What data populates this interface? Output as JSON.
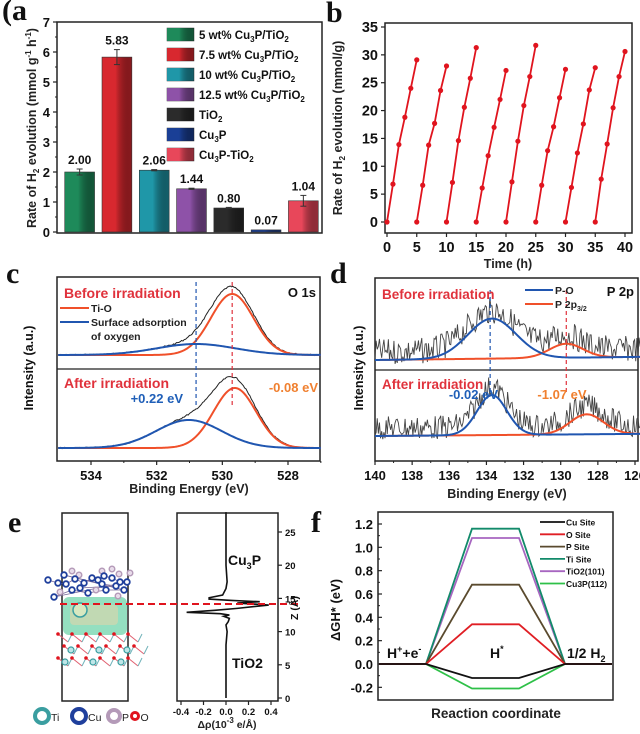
{
  "figure": {
    "panel_labels": [
      "(a",
      "b",
      "c",
      "d",
      "e",
      "f"
    ]
  },
  "chart_data": [
    {
      "id": "a",
      "type": "bar",
      "title": "",
      "xlabel": "",
      "ylabel": "Rate of H2 evolution (mmol g-1 h-1)",
      "ylabel_parts": {
        "pre": "Rate of H",
        "sub": "2",
        "mid": " evolution (mmol g",
        "sup1": "-1",
        "mid2": " h",
        "sup2": "-1",
        "post": ")"
      },
      "ylim": [
        0,
        7
      ],
      "yticks": [
        0,
        1,
        2,
        3,
        4,
        5,
        6,
        7
      ],
      "categories": [
        "5 wt% Cu3P/TiO2",
        "7.5 wt% Cu3P/TiO2",
        "10 wt% Cu3P/TiO2",
        "12.5 wt% Cu3P/TiO2",
        "TiO2",
        "Cu3P",
        "Cu3P-TiO2"
      ],
      "legend_items": [
        {
          "parts": [
            "5 wt% Cu",
            "3",
            "P/TiO",
            "2"
          ],
          "color": "#1e8a5a"
        },
        {
          "parts": [
            "7.5 wt% Cu",
            "3",
            "P/TiO",
            "2"
          ],
          "color": "#d8282f"
        },
        {
          "parts": [
            "10 wt% Cu",
            "3",
            "P/TiO",
            "2"
          ],
          "color": "#1f97a8"
        },
        {
          "parts": [
            "12.5 wt% Cu",
            "3",
            "P/TiO",
            "2"
          ],
          "color": "#8e52a8"
        },
        {
          "parts": [
            "TiO",
            "2"
          ],
          "color": "#2b2b2b"
        },
        {
          "parts": [
            "Cu",
            "3",
            "P"
          ],
          "color": "#1a3f96"
        },
        {
          "parts": [
            "Cu",
            "3",
            "P-TiO",
            "2"
          ],
          "color": "#e8475a"
        }
      ],
      "values": [
        2.0,
        5.83,
        2.06,
        1.44,
        0.8,
        0.07,
        1.04
      ],
      "value_labels": [
        "2.00",
        "5.83",
        "2.06",
        "1.44",
        "0.80",
        "0.07",
        "1.04"
      ],
      "errors": [
        0.1,
        0.25,
        0.02,
        0.02,
        0.02,
        0.01,
        0.18
      ],
      "legend_position": "top-right"
    },
    {
      "id": "b",
      "type": "line",
      "title": "",
      "xlabel": "Time (h)",
      "ylabel": "Rate of H2 evolution (mmol/g)",
      "ylabel_parts": {
        "pre": "Rate of H",
        "sub": "2",
        "post": " evolution (mmol/g)"
      },
      "xlim": [
        -2,
        42
      ],
      "ylim": [
        -2,
        35
      ],
      "xticks": [
        0,
        5,
        10,
        15,
        20,
        25,
        30,
        35,
        40
      ],
      "yticks": [
        0,
        5,
        10,
        15,
        20,
        25,
        30,
        35
      ],
      "color": "#e0141e",
      "series": [
        {
          "name": "cycle 1",
          "x": [
            0,
            1,
            2,
            3,
            4,
            5
          ],
          "y": [
            0,
            6.8,
            13.9,
            18.8,
            24.0,
            29.1
          ]
        },
        {
          "name": "cycle 2",
          "x": [
            5,
            6,
            7,
            8,
            9,
            10
          ],
          "y": [
            0,
            6.6,
            13.8,
            17.7,
            23.6,
            28.0
          ]
        },
        {
          "name": "cycle 3",
          "x": [
            10,
            11,
            12,
            13,
            14,
            15
          ],
          "y": [
            0,
            7.1,
            14.6,
            20.6,
            25.8,
            31.3
          ]
        },
        {
          "name": "cycle 4",
          "x": [
            15,
            16,
            17,
            18,
            19,
            20
          ],
          "y": [
            0,
            6.1,
            11.9,
            17.0,
            22.0,
            27.2
          ]
        },
        {
          "name": "cycle 5",
          "x": [
            20,
            21,
            22,
            23,
            24,
            25
          ],
          "y": [
            0,
            7.2,
            14.5,
            20.9,
            26.1,
            31.7
          ]
        },
        {
          "name": "cycle 6",
          "x": [
            25,
            26,
            27,
            28,
            29,
            30
          ],
          "y": [
            0,
            6.6,
            12.8,
            17.1,
            22.3,
            27.4
          ]
        },
        {
          "name": "cycle 7",
          "x": [
            30,
            31,
            32,
            33,
            34,
            35
          ],
          "y": [
            0,
            6.2,
            12.4,
            17.6,
            23.7,
            27.7
          ]
        },
        {
          "name": "cycle 8",
          "x": [
            35,
            36,
            37,
            38,
            39,
            40
          ],
          "y": [
            0,
            7.7,
            14.0,
            20.5,
            26.1,
            30.6
          ]
        }
      ]
    },
    {
      "id": "c",
      "type": "line",
      "title": "O 1s",
      "xlabel": "Binding Energy (eV)",
      "ylabel": "Intensity (a.u.)",
      "xlim": [
        535,
        527
      ],
      "xticks": [
        534,
        532,
        530,
        528
      ],
      "annotations": {
        "before": "Before irradiation",
        "after": "After irradiation",
        "shift_blue": "+0.22 eV",
        "shift_orange": "-0.08 eV",
        "legend_tio": "Ti-O",
        "legend_surface_1": "Surface adsorption",
        "legend_surface_2": "of oxygen"
      },
      "peaks": {
        "before": [
          {
            "name": "Ti-O",
            "center": 529.7,
            "color": "#f0502a"
          },
          {
            "name": "Surface adsorption of oxygen",
            "center": 530.8,
            "color": "#2056b0"
          }
        ],
        "after": [
          {
            "name": "Ti-O",
            "center": 529.62,
            "color": "#f0502a"
          },
          {
            "name": "Surface adsorption of oxygen",
            "center": 531.02,
            "color": "#2056b0"
          }
        ]
      },
      "reference_lines": [
        {
          "x": 530.8,
          "color": "#2056b0"
        },
        {
          "x": 529.7,
          "color": "#e0323c"
        }
      ]
    },
    {
      "id": "d",
      "type": "line",
      "title": "P 2p",
      "xlabel": "Binding Energy (eV)",
      "ylabel": "Intensity (a.u.)",
      "xlim": [
        140,
        125
      ],
      "xticks": [
        140,
        138,
        136,
        134,
        132,
        130,
        128,
        126
      ],
      "annotations": {
        "before": "Before irradiation",
        "after": "After irradiation",
        "shift_blue": "-0.02 eV",
        "shift_orange": "-1.07 eV",
        "legend_po": "P-O",
        "legend_p2p_pre": "P 2p",
        "legend_p2p_sub": "3/2"
      },
      "peaks": {
        "before": [
          {
            "name": "P-O",
            "center": 133.7,
            "color": "#2056b0"
          },
          {
            "name": "P 2p3/2",
            "center": 129.7,
            "color": "#f0502a"
          }
        ],
        "after": [
          {
            "name": "P-O",
            "center": 133.7,
            "color": "#2056b0"
          },
          {
            "name": "P 2p3/2",
            "center": 128.6,
            "color": "#f0502a"
          }
        ]
      },
      "reference_lines": [
        {
          "x": 133.8,
          "color": "#2056b0"
        },
        {
          "x": 129.7,
          "color": "#e0323c"
        }
      ]
    },
    {
      "id": "e",
      "type": "line",
      "title": "",
      "xlabel": "Δρ(10-3 e/Å)",
      "xlabel_parts": {
        "pre": "Δρ(10",
        "sup": "-3",
        "post": " e/Å)"
      },
      "ylabel": "Z (Å)",
      "xlim": [
        -0.4,
        0.45
      ],
      "ylim": [
        0,
        28
      ],
      "xticks": [
        "-0.4",
        "-0.2",
        "0.0",
        "0.2",
        "0.4"
      ],
      "yticks": [
        0,
        5,
        10,
        15,
        20,
        25
      ],
      "labels": {
        "top_pre": "Cu",
        "top_sub": "3",
        "top_post": "P",
        "bottom": "TiO2"
      },
      "interface_z": 14.5,
      "profile": {
        "x": [
          0,
          0,
          0.01,
          0,
          0.02,
          0.03,
          -0.02,
          0.03,
          -0.05,
          -0.35,
          -0.1,
          0.1,
          0.38,
          0.1,
          0.3,
          0.05,
          -0.15,
          -0.15,
          -0.03,
          0.0,
          0.01,
          0.0,
          0.0
        ],
        "z": [
          0,
          8,
          10,
          11,
          11.5,
          12,
          12.3,
          12.5,
          12.7,
          12.9,
          13.2,
          13.5,
          14,
          14.3,
          14.5,
          14.7,
          14.9,
          15.1,
          15.5,
          16.5,
          17.5,
          20,
          28
        ]
      },
      "atom_legend": [
        {
          "label": "Ti",
          "color": "#3a9ea0"
        },
        {
          "label": "Cu",
          "color": "#1f3f9c"
        },
        {
          "label": "P",
          "color": "#b49ab8"
        },
        {
          "label": "O",
          "color": "#e0141e"
        }
      ]
    },
    {
      "id": "f",
      "type": "line",
      "title": "",
      "xlabel": "Reaction coordinate",
      "ylabel": "ΔGH* (eV)",
      "ylim": [
        -0.3,
        1.3
      ],
      "yticks": [
        "-0.2",
        "0.0",
        "0.2",
        "0.4",
        "0.6",
        "0.8",
        "1.0",
        "1.2"
      ],
      "stages": [
        "H++e-",
        "H*",
        "1/2 H2"
      ],
      "stage_labels": {
        "s1_pre": "H",
        "s1_sup": "+",
        "s1_mid": "+e",
        "s1_sup2": "-",
        "s2_pre": "H",
        "s2_sup": "*",
        "s3_pre": "1/2 H",
        "s3_sub": "2"
      },
      "series": [
        {
          "name": "Cu Site",
          "value": -0.12,
          "color": "#111111"
        },
        {
          "name": "O Site",
          "value": 0.34,
          "color": "#e01e24"
        },
        {
          "name": "P Site",
          "value": 0.68,
          "color": "#5a4a2e"
        },
        {
          "name": "Ti Site",
          "value": 1.16,
          "color": "#128a6a"
        },
        {
          "name": "TiO2(101)",
          "value": 1.08,
          "color": "#a766c0"
        },
        {
          "name": "Cu3P(112)",
          "value": -0.21,
          "color": "#2ec048"
        }
      ],
      "legend_position": "top-right"
    }
  ]
}
